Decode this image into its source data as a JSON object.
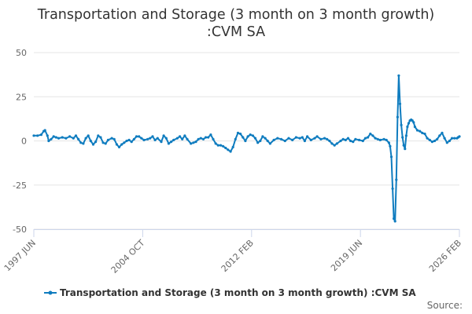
{
  "chart_data": {
    "type": "line",
    "title_line1": "Transportation and Storage (3 month on 3 month growth)",
    "title_line2": ":CVM SA",
    "xlabel": "",
    "ylabel": "",
    "ylim": [
      -50,
      50
    ],
    "yticks": [
      -50,
      -25,
      0,
      25,
      50
    ],
    "xlim": [
      "1997 JUN",
      "2026 FEB"
    ],
    "xticks": [
      {
        "label": "1997 JUN",
        "date": "1997-06"
      },
      {
        "label": "2004 OCT",
        "date": "2004-10"
      },
      {
        "label": "2012 FEB",
        "date": "2012-02"
      },
      {
        "label": "2019 JUN",
        "date": "2019-06"
      },
      {
        "label": "2026 FEB",
        "date": "2026-02"
      }
    ],
    "grid": "horizontal",
    "legend_position": "bottom",
    "series": [
      {
        "name": "Transportation and Storage (3 month on 3 month growth) :CVM SA",
        "color": "#0f7cbf",
        "points": [
          [
            "1997-06",
            3.0
          ],
          [
            "1997-09",
            3.0
          ],
          [
            "1997-12",
            3.5
          ],
          [
            "1998-02",
            5.5
          ],
          [
            "1998-03",
            6.0
          ],
          [
            "1998-05",
            3.0
          ],
          [
            "1998-06",
            0.0
          ],
          [
            "1998-08",
            1.0
          ],
          [
            "1998-10",
            2.5
          ],
          [
            "1998-12",
            2.0
          ],
          [
            "1999-02",
            1.5
          ],
          [
            "1999-05",
            2.0
          ],
          [
            "1999-08",
            1.5
          ],
          [
            "1999-11",
            2.5
          ],
          [
            "2000-02",
            1.5
          ],
          [
            "2000-04",
            3.0
          ],
          [
            "2000-06",
            1.0
          ],
          [
            "2000-08",
            -1.0
          ],
          [
            "2000-10",
            -1.5
          ],
          [
            "2000-12",
            1.5
          ],
          [
            "2001-02",
            3.0
          ],
          [
            "2001-04",
            0.0
          ],
          [
            "2001-06",
            -2.0
          ],
          [
            "2001-08",
            -0.5
          ],
          [
            "2001-10",
            3.0
          ],
          [
            "2001-12",
            2.0
          ],
          [
            "2002-02",
            -1.0
          ],
          [
            "2002-04",
            -1.5
          ],
          [
            "2002-06",
            0.5
          ],
          [
            "2002-09",
            1.5
          ],
          [
            "2002-11",
            1.0
          ],
          [
            "2003-01",
            -2.0
          ],
          [
            "2003-03",
            -3.5
          ],
          [
            "2003-05",
            -2.0
          ],
          [
            "2003-07",
            -1.0
          ],
          [
            "2003-09",
            0.0
          ],
          [
            "2003-11",
            0.5
          ],
          [
            "2004-01",
            -0.5
          ],
          [
            "2004-03",
            1.0
          ],
          [
            "2004-05",
            2.5
          ],
          [
            "2004-07",
            2.5
          ],
          [
            "2004-09",
            1.5
          ],
          [
            "2004-11",
            0.5
          ],
          [
            "2005-02",
            1.0
          ],
          [
            "2005-04",
            1.5
          ],
          [
            "2005-06",
            2.5
          ],
          [
            "2005-08",
            0.5
          ],
          [
            "2005-10",
            1.5
          ],
          [
            "2006-01",
            -0.5
          ],
          [
            "2006-03",
            3.0
          ],
          [
            "2006-05",
            1.5
          ],
          [
            "2006-07",
            -1.5
          ],
          [
            "2006-09",
            -0.5
          ],
          [
            "2006-11",
            0.5
          ],
          [
            "2007-02",
            1.5
          ],
          [
            "2007-04",
            2.5
          ],
          [
            "2007-06",
            1.0
          ],
          [
            "2007-08",
            3.0
          ],
          [
            "2007-10",
            1.0
          ],
          [
            "2008-01",
            -1.5
          ],
          [
            "2008-03",
            -1.0
          ],
          [
            "2008-05",
            -0.5
          ],
          [
            "2008-07",
            1.0
          ],
          [
            "2008-09",
            1.5
          ],
          [
            "2008-11",
            1.0
          ],
          [
            "2009-01",
            2.0
          ],
          [
            "2009-03",
            2.0
          ],
          [
            "2009-05",
            3.5
          ],
          [
            "2009-07",
            1.0
          ],
          [
            "2009-09",
            -1.5
          ],
          [
            "2009-11",
            -2.5
          ],
          [
            "2010-01",
            -2.5
          ],
          [
            "2010-03",
            -3.0
          ],
          [
            "2010-05",
            -4.0
          ],
          [
            "2010-07",
            -5.0
          ],
          [
            "2010-09",
            -6.0
          ],
          [
            "2010-11",
            -3.5
          ],
          [
            "2011-01",
            1.0
          ],
          [
            "2011-03",
            4.5
          ],
          [
            "2011-05",
            4.0
          ],
          [
            "2011-07",
            2.0
          ],
          [
            "2011-09",
            0.0
          ],
          [
            "2011-11",
            2.5
          ],
          [
            "2012-01",
            3.5
          ],
          [
            "2012-03",
            3.0
          ],
          [
            "2012-05",
            1.5
          ],
          [
            "2012-07",
            -1.0
          ],
          [
            "2012-09",
            0.0
          ],
          [
            "2012-11",
            2.5
          ],
          [
            "2013-01",
            1.5
          ],
          [
            "2013-03",
            0.0
          ],
          [
            "2013-05",
            -1.5
          ],
          [
            "2013-08",
            0.5
          ],
          [
            "2013-11",
            1.5
          ],
          [
            "2014-02",
            1.0
          ],
          [
            "2014-05",
            0.0
          ],
          [
            "2014-08",
            1.5
          ],
          [
            "2014-11",
            0.5
          ],
          [
            "2015-02",
            2.0
          ],
          [
            "2015-05",
            1.5
          ],
          [
            "2015-07",
            2.0
          ],
          [
            "2015-09",
            0.0
          ],
          [
            "2015-11",
            2.5
          ],
          [
            "2016-02",
            0.5
          ],
          [
            "2016-05",
            1.5
          ],
          [
            "2016-07",
            2.5
          ],
          [
            "2016-10",
            1.0
          ],
          [
            "2017-01",
            1.5
          ],
          [
            "2017-03",
            1.0
          ],
          [
            "2017-05",
            0.0
          ],
          [
            "2017-07",
            -1.5
          ],
          [
            "2017-09",
            -2.5
          ],
          [
            "2017-11",
            -1.5
          ],
          [
            "2018-02",
            0.0
          ],
          [
            "2018-04",
            1.0
          ],
          [
            "2018-06",
            0.5
          ],
          [
            "2018-08",
            1.5
          ],
          [
            "2018-10",
            0.0
          ],
          [
            "2018-12",
            -0.5
          ],
          [
            "2019-02",
            1.0
          ],
          [
            "2019-05",
            0.5
          ],
          [
            "2019-08",
            0.0
          ],
          [
            "2019-10",
            1.5
          ],
          [
            "2019-12",
            2.0
          ],
          [
            "2020-02",
            4.0
          ],
          [
            "2020-04",
            3.0
          ],
          [
            "2020-06",
            1.5
          ],
          [
            "2020-08",
            1.0
          ],
          [
            "2020-10",
            0.5
          ],
          [
            "2021-01",
            1.0
          ],
          [
            "2021-03",
            0.5
          ],
          [
            "2021-05",
            -1.0
          ],
          [
            "2021-06",
            -3.0
          ],
          [
            "2021-07",
            -9.0
          ],
          [
            "2021-08",
            -27.0
          ],
          [
            "2021-09",
            -44.0
          ],
          [
            "2021-10",
            -45.5
          ],
          [
            "2021-11",
            -22.0
          ],
          [
            "2021-12",
            13.5
          ],
          [
            "2022-01",
            37.0
          ],
          [
            "2022-02",
            21.0
          ],
          [
            "2022-03",
            9.0
          ],
          [
            "2022-04",
            2.0
          ],
          [
            "2022-05",
            -2.5
          ],
          [
            "2022-06",
            -4.5
          ],
          [
            "2022-07",
            3.0
          ],
          [
            "2022-08",
            8.0
          ],
          [
            "2022-09",
            10.0
          ],
          [
            "2022-10",
            11.5
          ],
          [
            "2022-11",
            12.0
          ],
          [
            "2022-12",
            11.5
          ],
          [
            "2023-01",
            10.5
          ],
          [
            "2023-02",
            8.0
          ],
          [
            "2023-04",
            6.0
          ],
          [
            "2023-06",
            5.5
          ],
          [
            "2023-08",
            4.5
          ],
          [
            "2023-10",
            4.0
          ],
          [
            "2023-12",
            1.5
          ],
          [
            "2024-02",
            0.5
          ],
          [
            "2024-04",
            -0.5
          ],
          [
            "2024-06",
            0.0
          ],
          [
            "2024-08",
            1.0
          ],
          [
            "2024-10",
            3.0
          ],
          [
            "2024-12",
            4.5
          ],
          [
            "2025-02",
            1.5
          ],
          [
            "2025-04",
            -1.0
          ],
          [
            "2025-06",
            0.0
          ],
          [
            "2025-08",
            1.5
          ],
          [
            "2025-10",
            1.5
          ],
          [
            "2025-12",
            1.5
          ],
          [
            "2026-01",
            2.0
          ],
          [
            "2026-02",
            2.5
          ]
        ]
      }
    ]
  },
  "footer": {
    "source": "Source:"
  }
}
